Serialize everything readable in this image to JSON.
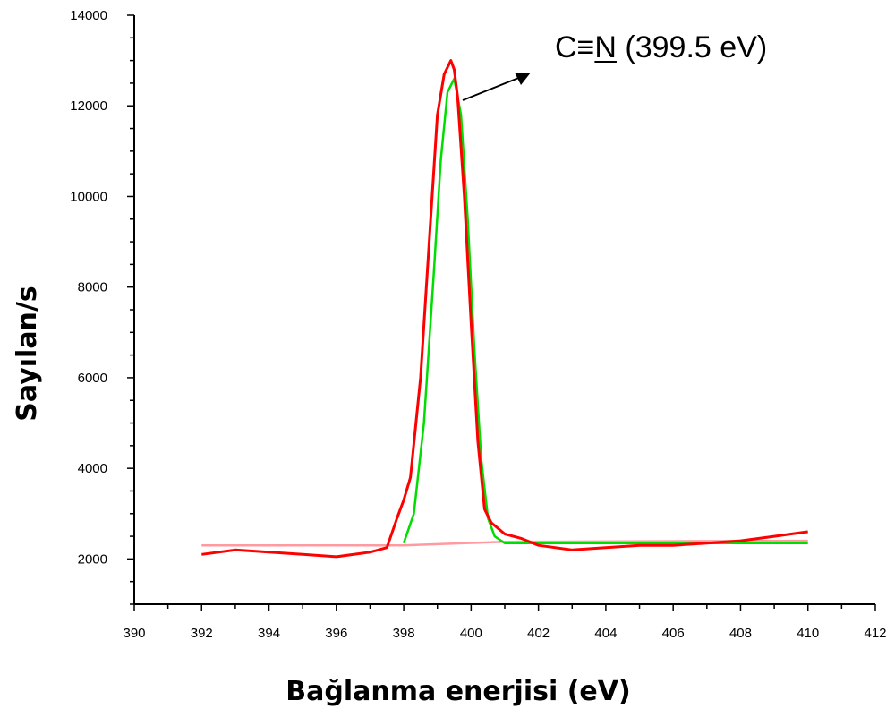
{
  "chart_data": {
    "type": "line",
    "title": "",
    "xlabel": "Bağlanma enerjisi (eV)",
    "ylabel": "Sayılan/s",
    "xlim": [
      390,
      412
    ],
    "ylim": [
      1000,
      14000
    ],
    "x_ticks": [
      "390",
      "392",
      "394",
      "396",
      "398",
      "400",
      "402",
      "404",
      "406",
      "408",
      "410",
      "412"
    ],
    "y_ticks": [
      "2000",
      "4000",
      "6000",
      "8000",
      "10000",
      "12000",
      "14000"
    ],
    "grid": false,
    "legend": "none",
    "annotation": {
      "text": "C≡N (399.5 eV)",
      "x": 399.5,
      "y": 12500
    },
    "series": [
      {
        "color": "#ff0000",
        "style": "measured (noisy)",
        "x": [
          392,
          393,
          394,
          395,
          396,
          397,
          397.5,
          397.8,
          398,
          398.2,
          398.5,
          398.8,
          399,
          399.2,
          399.4,
          399.5,
          399.6,
          399.8,
          400,
          400.2,
          400.4,
          400.6,
          401,
          401.5,
          402,
          403,
          404,
          405,
          406,
          407,
          408,
          408.5,
          409,
          409.5,
          410
        ],
        "y": [
          2100,
          2200,
          2150,
          2100,
          2050,
          2150,
          2250,
          2900,
          3300,
          3800,
          6000,
          9500,
          11800,
          12700,
          13000,
          12800,
          12200,
          10000,
          7200,
          4600,
          3100,
          2800,
          2550,
          2450,
          2300,
          2200,
          2250,
          2300,
          2300,
          2350,
          2400,
          2450,
          2500,
          2550,
          2600
        ]
      },
      {
        "color": "#ff9aa0",
        "style": "baseline",
        "x": [
          392,
          398,
          401,
          410
        ],
        "y": [
          2300,
          2300,
          2380,
          2400
        ]
      },
      {
        "color": "#00dd00",
        "style": "fit",
        "x": [
          398,
          398.3,
          398.6,
          398.9,
          399.1,
          399.3,
          399.5,
          399.7,
          399.9,
          400.1,
          400.3,
          400.5,
          400.7,
          401,
          402,
          410
        ],
        "y": [
          2350,
          3000,
          5000,
          8400,
          10800,
          12300,
          12600,
          11800,
          9500,
          6600,
          4200,
          2900,
          2500,
          2350,
          2350,
          2350
        ]
      }
    ]
  }
}
